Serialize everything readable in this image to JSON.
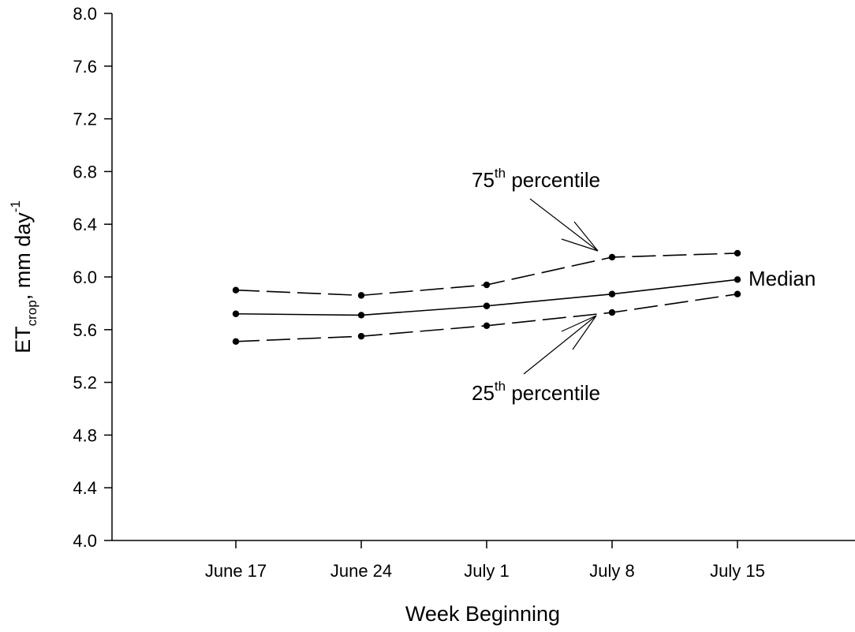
{
  "chart_data": {
    "type": "line",
    "x": [
      "June 17",
      "June 24",
      "July 1",
      "July 8",
      "July 15"
    ],
    "series": [
      {
        "name": "75th percentile",
        "values": [
          5.9,
          5.86,
          5.94,
          6.15,
          6.18
        ],
        "dash": "dashed"
      },
      {
        "name": "Median",
        "values": [
          5.72,
          5.71,
          5.78,
          5.87,
          5.98
        ],
        "dash": "solid"
      },
      {
        "name": "25th percentile",
        "values": [
          5.51,
          5.55,
          5.63,
          5.73,
          5.87
        ],
        "dash": "dashed"
      }
    ],
    "xlabel": "Week Beginning",
    "ylabel": {
      "base": "ET",
      "subscript": "crop",
      "rest": ", mm day",
      "superscript": "-1"
    },
    "ylim": [
      4.0,
      8.0
    ],
    "yticks": [
      "4.0",
      "4.4",
      "4.8",
      "5.2",
      "5.6",
      "6.0",
      "6.4",
      "6.8",
      "7.2",
      "7.6",
      "8.0"
    ],
    "grid": false,
    "legend": "none",
    "annotations": {
      "p75": {
        "number": "75",
        "sup": "th",
        "text": " percentile"
      },
      "median": {
        "text": "Median"
      },
      "p25": {
        "number": "25",
        "sup": "th",
        "text": " percentile"
      }
    }
  }
}
